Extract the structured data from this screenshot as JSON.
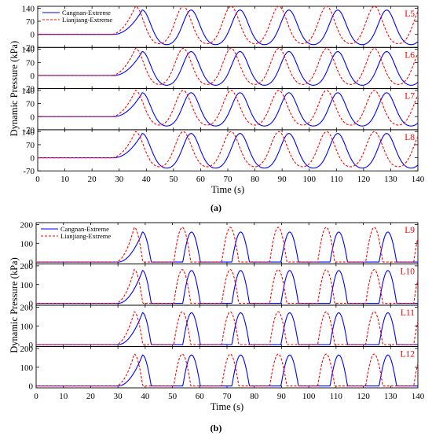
{
  "chart_data": [
    {
      "type": "line",
      "panel_caption": "(a)",
      "ylabel": "Dynamic Pressure (kPa)",
      "xlabel": "Time (s)",
      "xlim": [
        0,
        140
      ],
      "xticks": [
        0,
        10,
        20,
        30,
        40,
        50,
        60,
        70,
        80,
        90,
        100,
        110,
        120,
        130,
        140
      ],
      "ylim": [
        -70,
        150
      ],
      "yticks": [
        "-70",
        "0",
        "70",
        "140"
      ],
      "yticks_top_panel": [
        "-70",
        "0",
        "70",
        "140"
      ],
      "grid": false,
      "legend_position": "top-left",
      "series": [
        {
          "name": "Cangnan-Extreme",
          "color": "#0000ff",
          "style": "solid",
          "onset": 28,
          "first_peak_t": 38.5,
          "period": 18,
          "peak": 130,
          "trough": -55
        },
        {
          "name": "Lianjiang-Extreme",
          "color": "#ff0000",
          "style": "dashed",
          "onset": 27,
          "first_peak_t": 36,
          "period": 17.6,
          "peak": 150,
          "trough": -50
        }
      ],
      "subplots": [
        {
          "label": "L5",
          "blue_peak": 130,
          "blue_trough": -55,
          "red_peak": 150,
          "red_trough": -50
        },
        {
          "label": "L6",
          "blue_peak": 128,
          "blue_trough": -52,
          "red_peak": 145,
          "red_trough": -48
        },
        {
          "label": "L7",
          "blue_peak": 128,
          "blue_trough": -50,
          "red_peak": 140,
          "red_trough": -45
        },
        {
          "label": "L8",
          "blue_peak": 130,
          "blue_trough": -55,
          "red_peak": 140,
          "red_trough": -48
        }
      ]
    },
    {
      "type": "line",
      "panel_caption": "(b)",
      "ylabel": "Dynamic Pressure (kPa)",
      "xlabel": "Time (s)",
      "xlim": [
        0,
        140
      ],
      "xticks": [
        0,
        10,
        20,
        30,
        40,
        50,
        60,
        70,
        80,
        90,
        100,
        110,
        120,
        130,
        140
      ],
      "ylim": [
        -10,
        210
      ],
      "yticks": [
        "0",
        "100",
        "200"
      ],
      "grid": false,
      "legend_position": "top-left",
      "series": [
        {
          "name": "Cangnan-Extreme",
          "color": "#0000ff",
          "style": "solid",
          "onset": 30,
          "first_peak_t": 39,
          "period": 18,
          "peak": 160,
          "trough": 0
        },
        {
          "name": "Lianjiang-Extreme",
          "color": "#ff0000",
          "style": "dashed",
          "onset": 29,
          "first_peak_t": 36,
          "period": 17.6,
          "peak": 185,
          "trough": 0
        }
      ],
      "subplots": [
        {
          "label": "L9",
          "blue_peak": 160,
          "red_peak": 185
        },
        {
          "label": "L10",
          "blue_peak": 175,
          "red_peak": 180
        },
        {
          "label": "L11",
          "blue_peak": 170,
          "red_peak": 175
        },
        {
          "label": "L12",
          "blue_peak": 165,
          "red_peak": 170
        }
      ]
    }
  ]
}
